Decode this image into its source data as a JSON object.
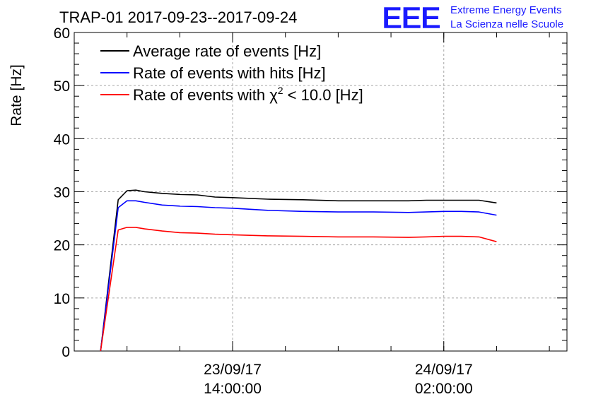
{
  "chart_data": {
    "type": "line",
    "title": "TRAP-01 2017-09-23--2017-09-24",
    "ylabel": "Rate [Hz]",
    "xlabel": "",
    "ylim": [
      0,
      60
    ],
    "yticks": [
      "0",
      "10",
      "20",
      "30",
      "40",
      "50",
      "60"
    ],
    "xlim": [
      "2017-09-23T05:00:00",
      "2017-09-24T09:00:00"
    ],
    "xtick_labels": [
      {
        "x": "2017-09-23T14:00:00",
        "line1": "23/09/17",
        "line2": "14:00:00"
      },
      {
        "x": "2017-09-24T02:00:00",
        "line1": "24/09/17",
        "line2": "02:00:00"
      }
    ],
    "grid": true,
    "legend_position": "top-left",
    "series": [
      {
        "name": "Average rate of events [Hz]",
        "color": "#000000",
        "x": [
          "2017-09-23T06:30:00",
          "2017-09-23T07:30:00",
          "2017-09-23T08:00:00",
          "2017-09-23T08:30:00",
          "2017-09-23T09:00:00",
          "2017-09-23T10:00:00",
          "2017-09-23T11:00:00",
          "2017-09-23T12:00:00",
          "2017-09-23T13:00:00",
          "2017-09-23T14:00:00",
          "2017-09-23T16:00:00",
          "2017-09-23T18:00:00",
          "2017-09-23T20:00:00",
          "2017-09-23T22:00:00",
          "2017-09-24T00:00:00",
          "2017-09-24T01:00:00",
          "2017-09-24T02:00:00",
          "2017-09-24T03:00:00",
          "2017-09-24T04:00:00",
          "2017-09-24T05:00:00"
        ],
        "values": [
          0,
          28.5,
          30.2,
          30.3,
          30.0,
          29.7,
          29.5,
          29.4,
          29.0,
          28.9,
          28.6,
          28.5,
          28.3,
          28.3,
          28.3,
          28.4,
          28.4,
          28.4,
          28.4,
          27.9
        ]
      },
      {
        "name": "Rate of events with hits [Hz]",
        "color": "#0000ff",
        "x": [
          "2017-09-23T06:30:00",
          "2017-09-23T07:30:00",
          "2017-09-23T08:00:00",
          "2017-09-23T08:30:00",
          "2017-09-23T09:00:00",
          "2017-09-23T10:00:00",
          "2017-09-23T11:00:00",
          "2017-09-23T12:00:00",
          "2017-09-23T13:00:00",
          "2017-09-23T14:00:00",
          "2017-09-23T16:00:00",
          "2017-09-23T18:00:00",
          "2017-09-23T20:00:00",
          "2017-09-23T22:00:00",
          "2017-09-24T00:00:00",
          "2017-09-24T01:00:00",
          "2017-09-24T02:00:00",
          "2017-09-24T03:00:00",
          "2017-09-24T04:00:00",
          "2017-09-24T05:00:00"
        ],
        "values": [
          0,
          27.0,
          28.3,
          28.3,
          28.0,
          27.5,
          27.3,
          27.2,
          27.0,
          26.9,
          26.5,
          26.3,
          26.2,
          26.2,
          26.1,
          26.2,
          26.3,
          26.3,
          26.2,
          25.6
        ]
      },
      {
        "name": "Rate of events with χ² < 10.0 [Hz]",
        "color": "#ff0000",
        "x": [
          "2017-09-23T06:30:00",
          "2017-09-23T07:30:00",
          "2017-09-23T08:00:00",
          "2017-09-23T08:30:00",
          "2017-09-23T09:00:00",
          "2017-09-23T10:00:00",
          "2017-09-23T11:00:00",
          "2017-09-23T12:00:00",
          "2017-09-23T13:00:00",
          "2017-09-23T14:00:00",
          "2017-09-23T16:00:00",
          "2017-09-23T18:00:00",
          "2017-09-23T20:00:00",
          "2017-09-23T22:00:00",
          "2017-09-24T00:00:00",
          "2017-09-24T01:00:00",
          "2017-09-24T02:00:00",
          "2017-09-24T03:00:00",
          "2017-09-24T04:00:00",
          "2017-09-24T05:00:00"
        ],
        "values": [
          0,
          22.8,
          23.3,
          23.3,
          23.0,
          22.6,
          22.3,
          22.2,
          22.0,
          21.9,
          21.7,
          21.6,
          21.5,
          21.5,
          21.4,
          21.5,
          21.6,
          21.6,
          21.5,
          20.6
        ]
      }
    ]
  },
  "legend": {
    "avg": "Average rate of events [Hz]",
    "hits": "Rate of events with hits [Hz]",
    "chi_prefix": "Rate of events with χ",
    "chi_sup": "2",
    "chi_suffix": " < 10.0 [Hz]"
  },
  "logo": {
    "mark": "EEE",
    "line1": "Extreme Energy Events",
    "line2": "La Scienza nelle Scuole",
    "color": "#1a1aff"
  }
}
